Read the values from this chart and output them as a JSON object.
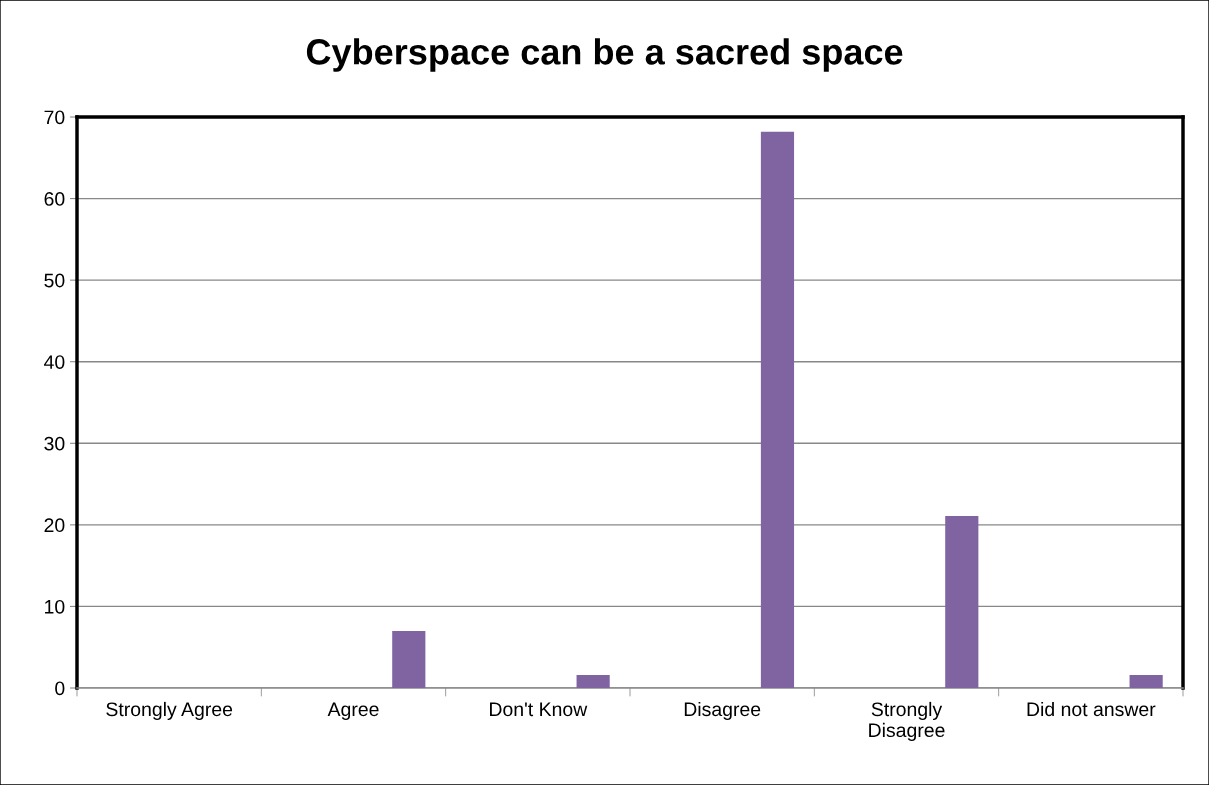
{
  "chart_data": {
    "type": "bar",
    "title": "Cyberspace can be a sacred space",
    "categories": [
      "Strongly Agree",
      "Agree",
      "Don't Know",
      "Disagree",
      "Strongly Disagree",
      "Did not answer"
    ],
    "values": [
      0,
      7,
      1.6,
      68.2,
      21.1,
      1.6
    ],
    "color": "#8064a2",
    "ylim": [
      0,
      70
    ],
    "yticks": [
      0,
      10,
      20,
      30,
      40,
      50,
      60,
      70
    ],
    "grid": "y",
    "legend": false
  }
}
